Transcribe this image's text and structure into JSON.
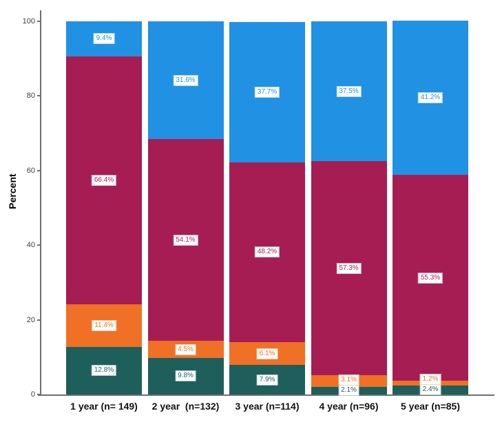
{
  "chart_data": {
    "type": "bar",
    "stacked": true,
    "title": "",
    "xlabel": "",
    "ylabel": "Percent",
    "ylim": [
      0,
      100
    ],
    "yticks": [
      0,
      20,
      40,
      60,
      80,
      100
    ],
    "grid": false,
    "legend": "none",
    "data_label_format": "percent-one-decimal",
    "categories": [
      "1 year (n= 149)",
      "2 year  (n=132)",
      "3 year (n=114)",
      "4 year (n=96)",
      "5 year (n=85)"
    ],
    "series": [
      {
        "name": "teal-bottom-segment",
        "color": "#1e5f5c",
        "values": [
          12.8,
          9.8,
          7.9,
          2.1,
          2.4
        ]
      },
      {
        "name": "orange-segment",
        "color": "#f07026",
        "values": [
          11.4,
          4.5,
          6.1,
          3.1,
          1.2
        ]
      },
      {
        "name": "magenta-segment",
        "color": "#a61d54",
        "values": [
          66.4,
          54.1,
          48.2,
          57.3,
          55.3
        ]
      },
      {
        "name": "blue-top-segment",
        "color": "#2191e4",
        "values": [
          9.4,
          31.6,
          37.7,
          37.5,
          41.2
        ]
      }
    ]
  },
  "colors": {
    "axis": "#6e6e6e",
    "tick_text": "#3d3d3d",
    "category_text": "#111111",
    "background": "#ffffff"
  }
}
